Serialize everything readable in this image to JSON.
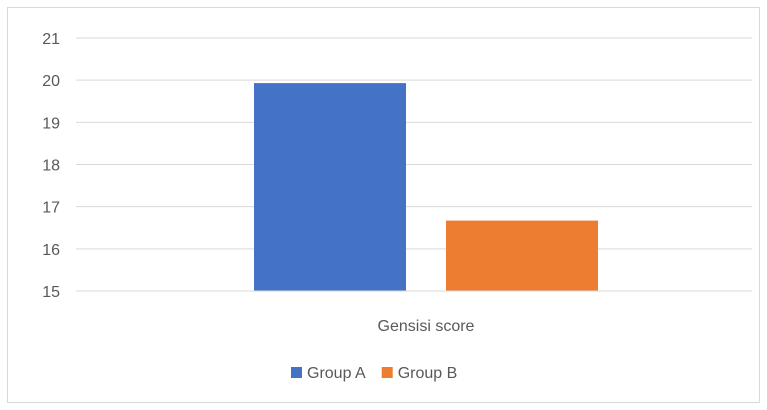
{
  "chart_data": {
    "type": "bar",
    "title": "",
    "xlabel": "",
    "ylabel": "",
    "categories": [
      "Gensisi score"
    ],
    "series": [
      {
        "name": "Group A",
        "values": [
          19.93
        ],
        "color": "#4472c4"
      },
      {
        "name": "Group B",
        "values": [
          16.67
        ],
        "color": "#ed7d31"
      }
    ],
    "ylim": [
      15,
      21
    ],
    "yticks": [
      15,
      16,
      17,
      18,
      19,
      20,
      21
    ],
    "grid": true,
    "legend_position": "bottom"
  }
}
